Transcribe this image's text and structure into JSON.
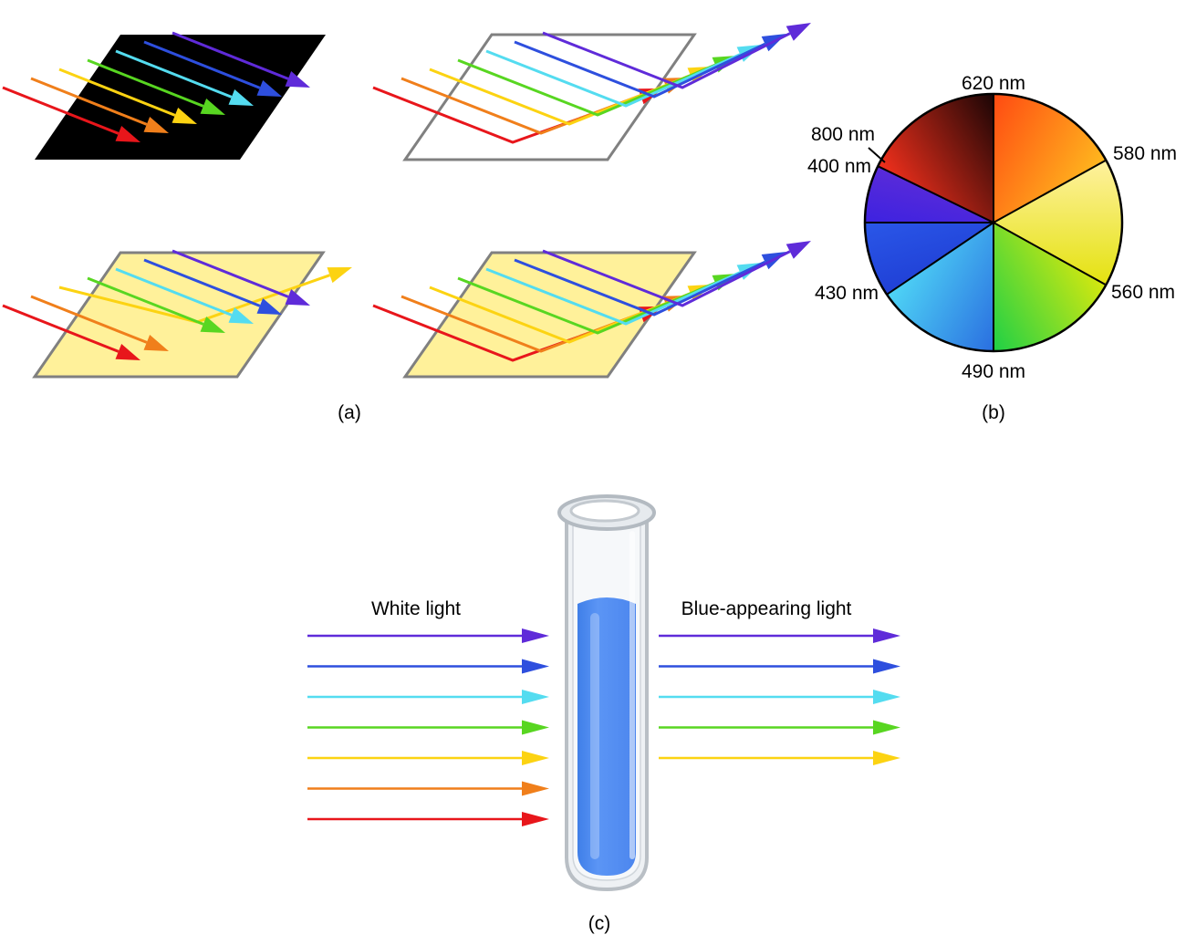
{
  "panels": {
    "a": {
      "label": "(a)"
    },
    "b": {
      "label": "(b)"
    },
    "c": {
      "label": "(c)"
    }
  },
  "rays": {
    "colors": [
      "#e8161b",
      "#f07f1b",
      "#fcd312",
      "#58d621",
      "#54dcf0",
      "#2e4fde",
      "#5f2bd9"
    ]
  },
  "surfaces": {
    "black": {
      "fill": "#000000"
    },
    "white": {
      "fill": "#ffffff",
      "edge": "#808080"
    },
    "yellow": {
      "fill": "#fff19a",
      "edge": "#808080"
    }
  },
  "color_wheel": {
    "labels": {
      "nm620": "620 nm",
      "nm580": "580 nm",
      "nm560": "560 nm",
      "nm490": "490 nm",
      "nm430": "430 nm",
      "nm400": "400 nm",
      "nm800": "800 nm"
    },
    "segments": [
      {
        "name": "red",
        "start": "#f3301c",
        "end": "#1a0505"
      },
      {
        "name": "orange",
        "start": "#ff4a12",
        "end": "#ffb81e"
      },
      {
        "name": "yellow",
        "start": "#fff1a0",
        "end": "#e4e20f"
      },
      {
        "name": "green",
        "start": "#d6e80f",
        "end": "#1ed046"
      },
      {
        "name": "cyan-blue",
        "start": "#2a6ee0",
        "end": "#4fd6f6"
      },
      {
        "name": "blue",
        "start": "#2040d6",
        "end": "#2a57e8"
      },
      {
        "name": "violet",
        "start": "#3d22e0",
        "end": "#5a2bd9"
      }
    ]
  },
  "test_tube": {
    "left_label": "White light",
    "right_label": "Blue-appearing light",
    "liquid_color": "#5b95f5",
    "transmitted_colors": [
      "#5f2bd9",
      "#2e4fde",
      "#54dcf0",
      "#58d621",
      "#fcd312"
    ]
  }
}
